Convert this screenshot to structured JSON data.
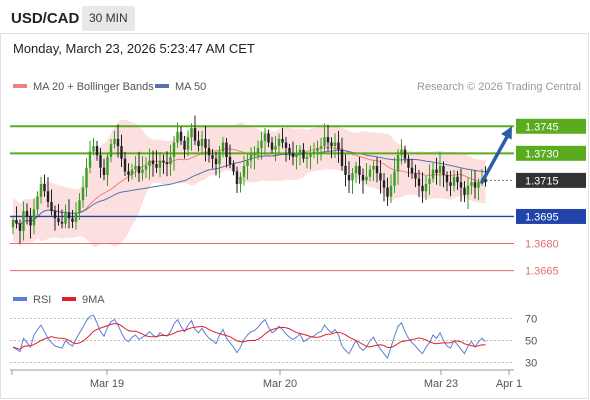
{
  "header": {
    "symbol": "USD/CAD",
    "timeframe": "30 MIN"
  },
  "headline": "Monday, March 23, 2026 5:23:47 AM CET",
  "legend": {
    "ma20": "MA 20 + Bollinger Bands",
    "ma50": "MA 50",
    "credit": "Research © 2026 Trading Central"
  },
  "colors": {
    "bull": "#3a9d23",
    "bear": "#222222",
    "ma20": "#f08080",
    "ma50": "#5a6fb0",
    "band": "#fbd5d5",
    "resistance": "#5aab1e",
    "support": "#2244aa",
    "support_weak": "#e07070",
    "current": "#333333",
    "arrow": "#2a5fa8",
    "rsi": "#5b7fd6",
    "rsi_ma": "#e0202a"
  },
  "chart_data": [
    {
      "type": "candlestick",
      "x_ticks": [
        "Mar 19",
        "Mar 20",
        "Mar 23",
        "Apr 1"
      ],
      "ylim": [
        1.3657,
        1.3764
      ],
      "levels": [
        {
          "value": 1.3745,
          "label": "1.3745",
          "kind": "resistance"
        },
        {
          "value": 1.373,
          "label": "1.3730",
          "kind": "resistance"
        },
        {
          "value": 1.3715,
          "label": "1.3715",
          "kind": "current"
        },
        {
          "value": 1.3695,
          "label": "1.3695",
          "kind": "support"
        },
        {
          "value": 1.368,
          "label": "1.3680",
          "kind": "support_weak"
        },
        {
          "value": 1.3665,
          "label": "1.3665",
          "kind": "support_weak"
        }
      ],
      "forecast": {
        "from": 1.3714,
        "to": 1.3745
      },
      "closes": [
        1.3693,
        1.3691,
        1.3687,
        1.3698,
        1.3695,
        1.369,
        1.3699,
        1.3706,
        1.3713,
        1.3709,
        1.3703,
        1.3698,
        1.3694,
        1.3692,
        1.3691,
        1.3697,
        1.3694,
        1.3692,
        1.3697,
        1.3704,
        1.3711,
        1.3722,
        1.3731,
        1.3734,
        1.3729,
        1.3722,
        1.3718,
        1.3728,
        1.3735,
        1.3738,
        1.3734,
        1.3727,
        1.372,
        1.3718,
        1.3721,
        1.3723,
        1.3719,
        1.3721,
        1.3723,
        1.3726,
        1.3724,
        1.3722,
        1.3726,
        1.3725,
        1.3724,
        1.3728,
        1.3736,
        1.3742,
        1.3737,
        1.3732,
        1.3739,
        1.3744,
        1.3737,
        1.3734,
        1.3738,
        1.3733,
        1.3729,
        1.3727,
        1.3724,
        1.3731,
        1.3736,
        1.3728,
        1.3724,
        1.372,
        1.3713,
        1.3717,
        1.3723,
        1.3726,
        1.3729,
        1.373,
        1.3733,
        1.3737,
        1.3741,
        1.3736,
        1.3732,
        1.3734,
        1.3738,
        1.3736,
        1.3733,
        1.373,
        1.3728,
        1.373,
        1.3732,
        1.3727,
        1.3728,
        1.373,
        1.3731,
        1.3733,
        1.3734,
        1.3739,
        1.3736,
        1.3734,
        1.3736,
        1.3732,
        1.3723,
        1.3718,
        1.3715,
        1.3719,
        1.3723,
        1.3718,
        1.3715,
        1.3717,
        1.3721,
        1.3723,
        1.3719,
        1.3715,
        1.3711,
        1.3706,
        1.3712,
        1.372,
        1.3729,
        1.3732,
        1.3727,
        1.3722,
        1.3719,
        1.3716,
        1.3712,
        1.3709,
        1.3713,
        1.3716,
        1.3721,
        1.3719,
        1.3723,
        1.3718,
        1.3714,
        1.3712,
        1.3717,
        1.3714,
        1.3711,
        1.3707,
        1.3712,
        1.3714,
        1.3711,
        1.3714,
        1.3716,
        1.3714
      ]
    },
    {
      "type": "line",
      "series": [
        {
          "name": "RSI"
        },
        {
          "name": "9MA"
        }
      ],
      "y_ticks": [
        70,
        50,
        30
      ],
      "ylim": [
        25,
        75
      ],
      "rsi": [
        44,
        42,
        40,
        52,
        48,
        44,
        55,
        60,
        64,
        58,
        52,
        48,
        45,
        44,
        43,
        50,
        47,
        45,
        51,
        57,
        62,
        68,
        72,
        73,
        66,
        58,
        54,
        62,
        67,
        69,
        64,
        57,
        51,
        49,
        53,
        55,
        51,
        53,
        55,
        58,
        55,
        53,
        57,
        55,
        54,
        58,
        65,
        69,
        63,
        58,
        64,
        68,
        60,
        57,
        61,
        56,
        52,
        50,
        47,
        55,
        60,
        52,
        48,
        44,
        39,
        44,
        51,
        55,
        58,
        59,
        62,
        66,
        69,
        62,
        57,
        59,
        63,
        60,
        56,
        53,
        51,
        53,
        56,
        49,
        51,
        53,
        54,
        57,
        58,
        64,
        60,
        57,
        60,
        55,
        45,
        41,
        38,
        44,
        50,
        44,
        41,
        44,
        50,
        53,
        47,
        42,
        38,
        34,
        44,
        54,
        63,
        66,
        58,
        52,
        48,
        45,
        41,
        38,
        44,
        48,
        55,
        52,
        57,
        50,
        45,
        43,
        50,
        46,
        42,
        38,
        45,
        49,
        44,
        49,
        52,
        49
      ]
    }
  ]
}
